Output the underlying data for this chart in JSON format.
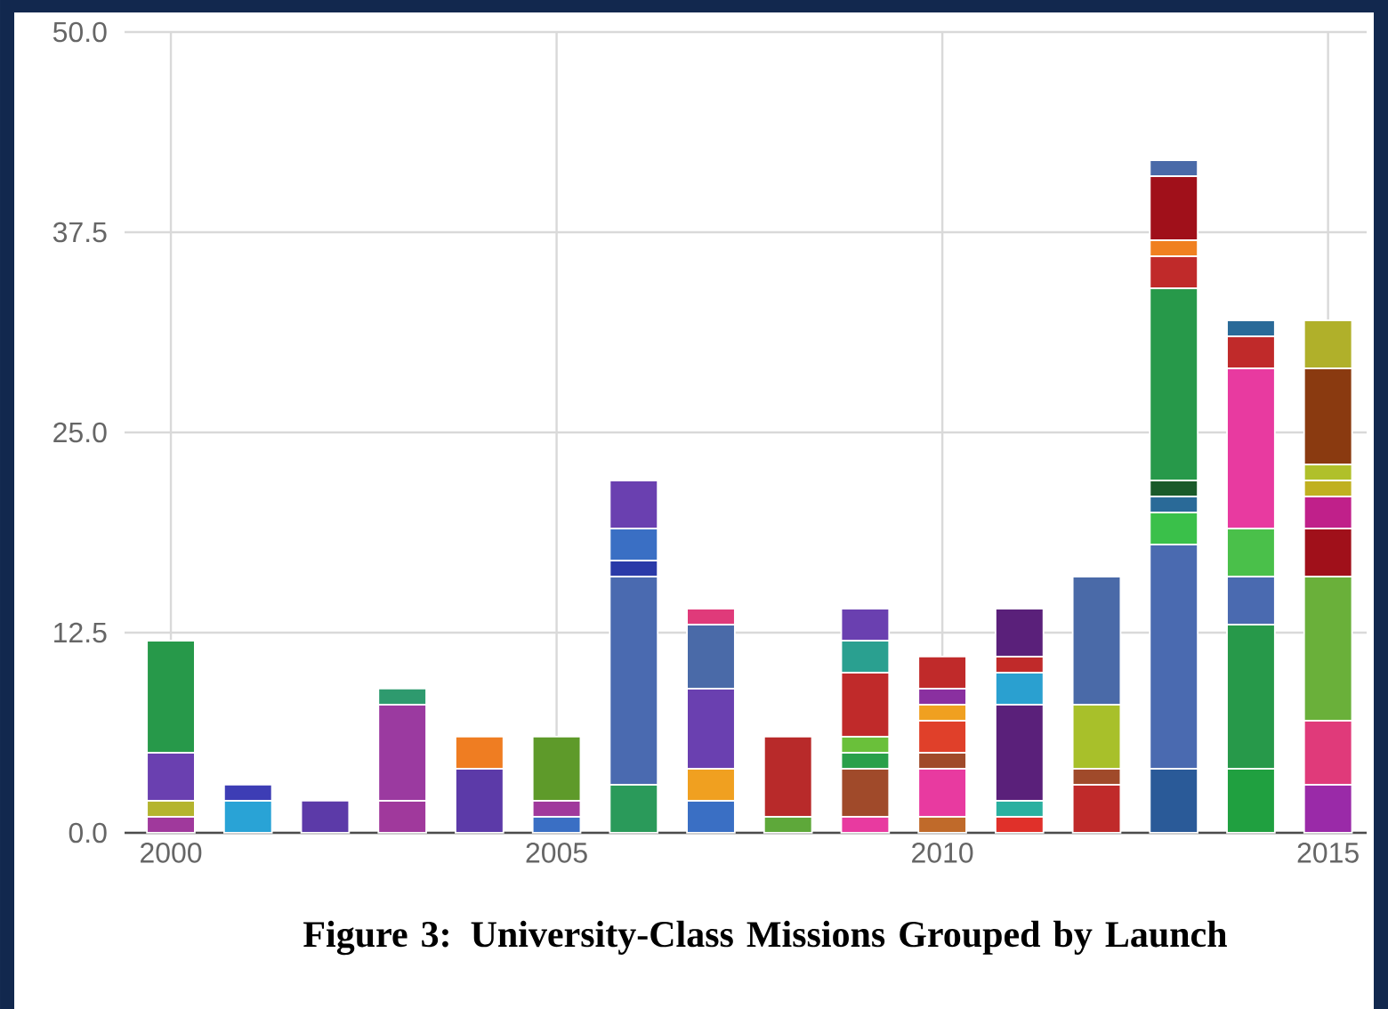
{
  "chart_data": {
    "type": "bar",
    "title": "Figure 3: University-Class Missions Grouped by Launch",
    "stacked": true,
    "grid": true,
    "x": [
      2000,
      2001,
      2002,
      2003,
      2004,
      2005,
      2006,
      2007,
      2008,
      2009,
      2010,
      2011,
      2012,
      2013,
      2014,
      2015
    ],
    "xlim": [
      1999.4,
      2015.5
    ],
    "xticks": [
      2000,
      2005,
      2010,
      2015
    ],
    "ylim": [
      0,
      50
    ],
    "yticks": [
      {
        "value": 0,
        "label": "0.0"
      },
      12.5,
      {
        "value": 25,
        "label": "25.0"
      },
      37.5,
      {
        "value": 50,
        "label": "50.0"
      }
    ],
    "series": [
      {
        "values": [
          1,
          2,
          2,
          2,
          4,
          1,
          3,
          2,
          1,
          1,
          1,
          1,
          3,
          4,
          4,
          3
        ],
        "colors": [
          "#a0399c",
          "#29a3d6",
          "#5c3aa8",
          "#a0399c",
          "#5c3aa8",
          "#3a6fc4",
          "#2a9a5a",
          "#3a6fc4",
          "#5ea83a",
          "#e83aa0",
          "#c06a2a",
          "#e0302a",
          "#c02a2a",
          "#2a5a98",
          "#20a040",
          "#9a2aa8"
        ]
      },
      {
        "values": [
          1,
          1,
          null,
          6,
          2,
          1,
          13,
          2,
          5,
          3,
          3,
          1,
          1,
          14,
          9,
          4
        ],
        "colors": [
          "#b4b42e",
          "#3d3db5",
          null,
          "#9b3aa0",
          "#ef7d22",
          "#a0399c",
          "#4a6ab0",
          "#f0a020",
          "#b82a2a",
          "#a04a2a",
          "#e83aa0",
          "#2ab0a0",
          "#a04a2a",
          "#4a6ab0",
          "#27994a",
          "#e03a7a"
        ]
      },
      {
        "values": [
          3,
          null,
          null,
          1,
          null,
          4,
          1,
          5,
          null,
          1,
          1,
          6,
          4,
          2,
          3,
          9
        ],
        "colors": [
          "#6a40b0",
          null,
          null,
          "#2e9a6e",
          null,
          "#5e9a2a",
          "#2a3aa8",
          "#6a40b0",
          null,
          "#2aa04a",
          "#a04a2a",
          "#5a207a",
          "#a8c02a",
          "#3ac04a",
          "#4a6ab0",
          "#6ab03a"
        ]
      },
      {
        "values": [
          7,
          null,
          null,
          null,
          null,
          null,
          2,
          4,
          null,
          1,
          2,
          2,
          8,
          1,
          3,
          3
        ],
        "colors": [
          "#27994a",
          null,
          null,
          null,
          null,
          null,
          "#3a6fc4",
          "#4a6aa8",
          null,
          "#6ac03a",
          "#e0402a",
          "#2aa0d0",
          "#4a6aa8",
          "#2a6a98",
          "#4ac04a",
          "#a0101a"
        ]
      },
      {
        "values": [
          null,
          null,
          null,
          null,
          null,
          null,
          3,
          1,
          null,
          4,
          1,
          1,
          null,
          1,
          10,
          2
        ],
        "colors": [
          null,
          null,
          null,
          null,
          null,
          null,
          "#6a40b0",
          "#e03a7a",
          null,
          "#c02a2a",
          "#f0a020",
          "#c02a2a",
          null,
          "#1a5a2a",
          "#e83aa0",
          "#c0208a"
        ]
      },
      {
        "values": [
          null,
          null,
          null,
          null,
          null,
          null,
          null,
          null,
          null,
          2,
          1,
          3,
          null,
          12,
          2,
          1
        ],
        "colors": [
          null,
          null,
          null,
          null,
          null,
          null,
          null,
          null,
          null,
          "#2aa090",
          "#8a30a0",
          "#5a207a",
          null,
          "#27994a",
          "#c02a2a",
          "#c0b020"
        ]
      },
      {
        "values": [
          null,
          null,
          null,
          null,
          null,
          null,
          null,
          null,
          null,
          2,
          2,
          null,
          null,
          2,
          1,
          1
        ],
        "colors": [
          null,
          null,
          null,
          null,
          null,
          null,
          null,
          null,
          null,
          "#6a40b0",
          "#c02a2a",
          null,
          null,
          "#c02a2a",
          "#2a6a98",
          "#b0c02a"
        ]
      },
      {
        "values": [
          null,
          null,
          null,
          null,
          null,
          null,
          null,
          null,
          null,
          null,
          null,
          null,
          null,
          1,
          null,
          6
        ],
        "colors": [
          null,
          null,
          null,
          null,
          null,
          null,
          null,
          null,
          null,
          null,
          null,
          null,
          null,
          "#f08020",
          null,
          "#8a3a10"
        ]
      },
      {
        "values": [
          null,
          null,
          null,
          null,
          null,
          null,
          null,
          null,
          null,
          null,
          null,
          null,
          null,
          4,
          null,
          3
        ],
        "colors": [
          null,
          null,
          null,
          null,
          null,
          null,
          null,
          null,
          null,
          null,
          null,
          null,
          null,
          "#a0101a",
          null,
          "#b0b02a"
        ]
      },
      {
        "values": [
          null,
          null,
          null,
          null,
          null,
          null,
          null,
          null,
          null,
          null,
          null,
          null,
          null,
          1,
          null,
          null
        ],
        "colors": [
          null,
          null,
          null,
          null,
          null,
          null,
          null,
          null,
          null,
          null,
          null,
          null,
          null,
          "#4a6aa8",
          null,
          null
        ]
      }
    ]
  }
}
